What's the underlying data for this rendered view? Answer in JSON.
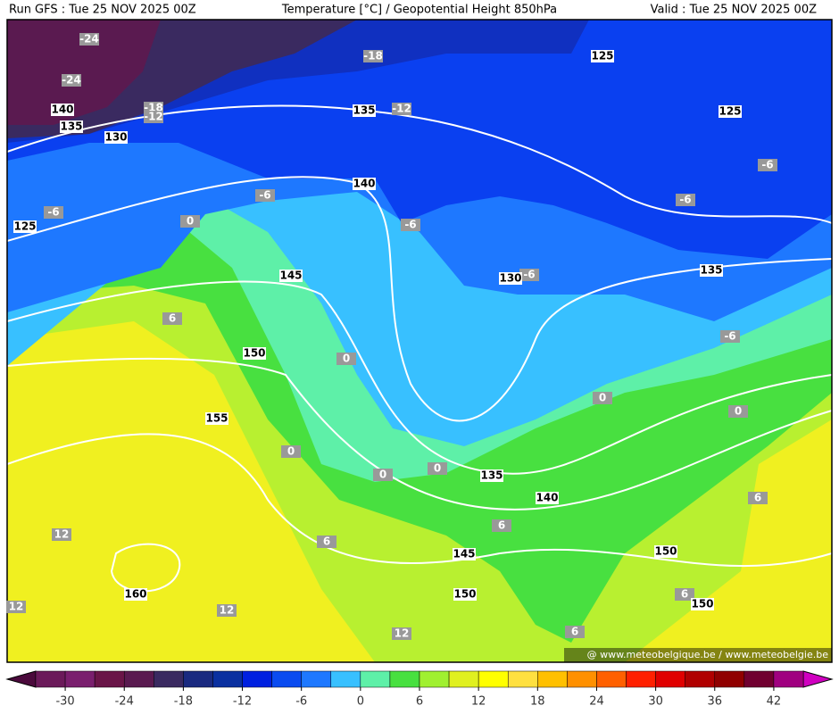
{
  "header": {
    "left": "Run GFS : Tue 25 NOV 2025 00Z",
    "center": "Temperature [°C] / Geopotential Height 850hPa",
    "right": "Valid : Tue 25 NOV 2025 00Z"
  },
  "map": {
    "height_labels": [
      125,
      140,
      135,
      130,
      135,
      125,
      140,
      125,
      145,
      130,
      135,
      150,
      155,
      135,
      140,
      145,
      150,
      160,
      150,
      150
    ],
    "temperature_labels": [
      -24,
      -24,
      -18,
      -18,
      -12,
      -12,
      -6,
      -6,
      -6,
      -6,
      -6,
      -6,
      -6,
      0,
      0,
      0,
      0,
      0,
      0,
      0,
      6,
      6,
      6,
      6,
      6,
      6,
      12,
      12,
      12,
      12
    ],
    "credit": "@ www.meteobelgique.be / www.meteobelgie.be"
  },
  "colorbar": {
    "range": [
      -33,
      45
    ],
    "colors": [
      "#6b1a5a",
      "#7a1f6e",
      "#6a1548",
      "#5a1a50",
      "#3a2a60",
      "#1a2a80",
      "#0a30a0",
      "#0020e0",
      "#0a4bf0",
      "#1e78ff",
      "#38c0ff",
      "#5ef0a8",
      "#48e040",
      "#a0f030",
      "#e0f020",
      "#ffff00",
      "#ffe040",
      "#ffc000",
      "#ff9000",
      "#ff6000",
      "#ff2000",
      "#e00000",
      "#b00000",
      "#900000",
      "#700030",
      "#a00080"
    ],
    "under_color": "#4b0a3c",
    "over_color": "#d000c0",
    "ticks": [
      -30,
      -24,
      -18,
      -12,
      -6,
      0,
      6,
      12,
      18,
      24,
      30,
      36,
      42
    ]
  }
}
